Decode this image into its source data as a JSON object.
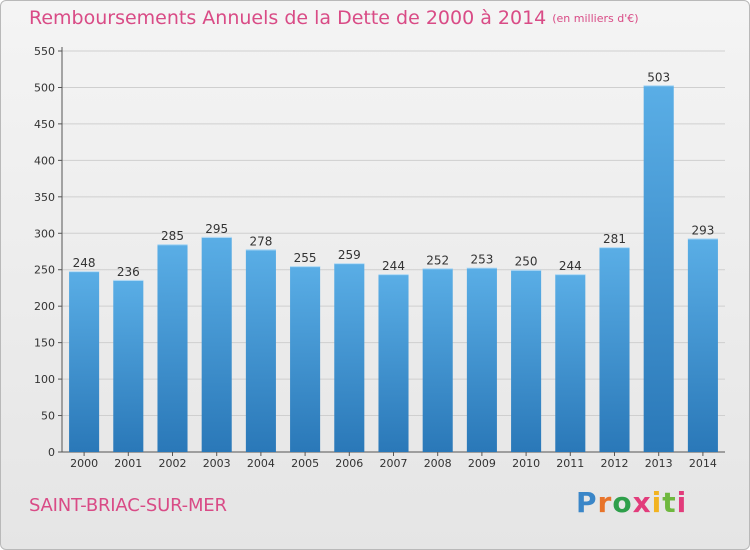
{
  "title": "Remboursements Annuels de la Dette de 2000 à 2014",
  "unit": "(en milliers d'€)",
  "commune": "SAINT-BRIAC-SUR-MER",
  "logo": {
    "letters": [
      "P",
      "r",
      "o",
      "x",
      "i",
      "t",
      "i"
    ],
    "text": "Proxiti"
  },
  "colors": {
    "accent": "#d94b86",
    "bar_top": "#5aaee6",
    "bar_bottom": "#2a78b8",
    "grid": "#cfcfcf"
  },
  "chart_data": {
    "type": "bar",
    "title": "Remboursements Annuels de la Dette de 2000 à 2014",
    "xlabel": "",
    "ylabel": "",
    "categories": [
      "2000",
      "2001",
      "2002",
      "2003",
      "2004",
      "2005",
      "2006",
      "2007",
      "2008",
      "2009",
      "2010",
      "2011",
      "2012",
      "2013",
      "2014"
    ],
    "values": [
      248,
      236,
      285,
      295,
      278,
      255,
      259,
      244,
      252,
      253,
      250,
      244,
      281,
      503,
      293
    ],
    "ylim": [
      0,
      550
    ],
    "yticks": [
      0,
      50,
      100,
      150,
      200,
      250,
      300,
      350,
      400,
      450,
      500,
      550
    ],
    "grid": true,
    "data_labels": true
  }
}
